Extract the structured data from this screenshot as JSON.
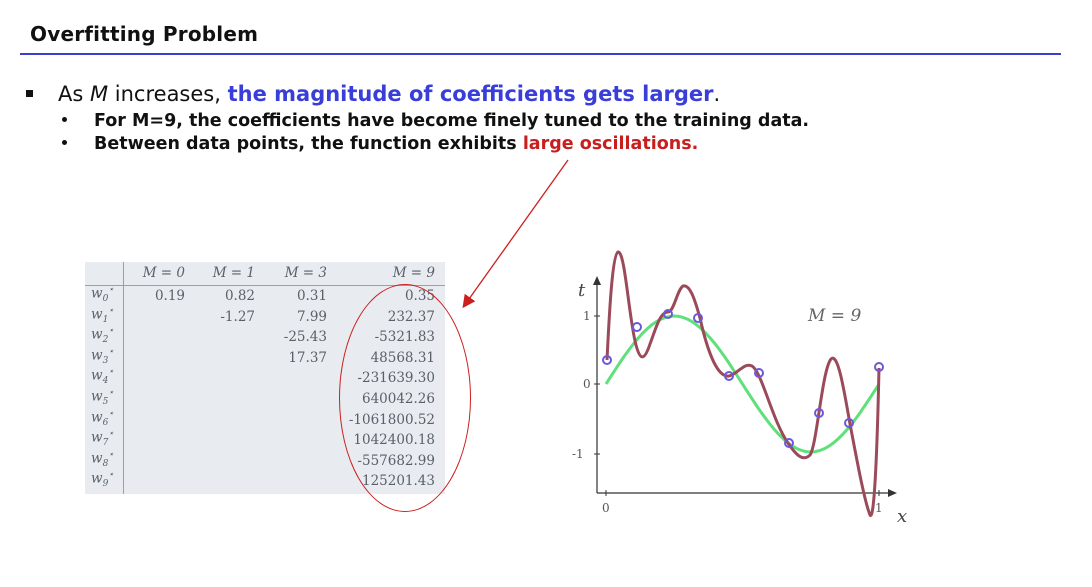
{
  "slide": {
    "title": "Overfitting Problem",
    "main_bullet": {
      "prefix": "As ",
      "var": "M",
      "mid": " increases, ",
      "highlight": "the magnitude of coefficients gets larger",
      "suffix": "."
    },
    "sub_bullets": [
      {
        "text": "For M=9, the coefficients have become finely tuned to the training data."
      },
      {
        "prefix": "Between data points, the function exhibits ",
        "highlight": "large oscillations."
      }
    ]
  },
  "coef_table": {
    "headers": [
      "M = 0",
      "M = 1",
      "M = 3",
      "M = 9"
    ],
    "row_labels": [
      "w0*",
      "w1*",
      "w2*",
      "w3*",
      "w4*",
      "w5*",
      "w6*",
      "w7*",
      "w8*",
      "w9*"
    ],
    "columns": [
      [
        "0.19"
      ],
      [
        "0.82",
        "-1.27"
      ],
      [
        "0.31",
        "7.99",
        "-25.43",
        "17.37"
      ],
      [
        "0.35",
        "232.37",
        "-5321.83",
        "48568.31",
        "-231639.30",
        "640042.26",
        "-1061800.52",
        "1042400.18",
        "-557682.99",
        "125201.43"
      ]
    ]
  },
  "plot": {
    "label": "M = 9",
    "y_axis_label": "t",
    "x_axis_label": "x",
    "y_ticks": [
      "1",
      "0",
      "-1"
    ],
    "x_ticks": [
      "0",
      "1"
    ]
  },
  "colors": {
    "title_rule": "#3b3fcf",
    "highlight_blue": "#3a3ed8",
    "highlight_red": "#c81e1e",
    "fit_curve": "#9b4a5a",
    "true_curve": "#5fe07a",
    "points": "#6a5ad8"
  }
}
